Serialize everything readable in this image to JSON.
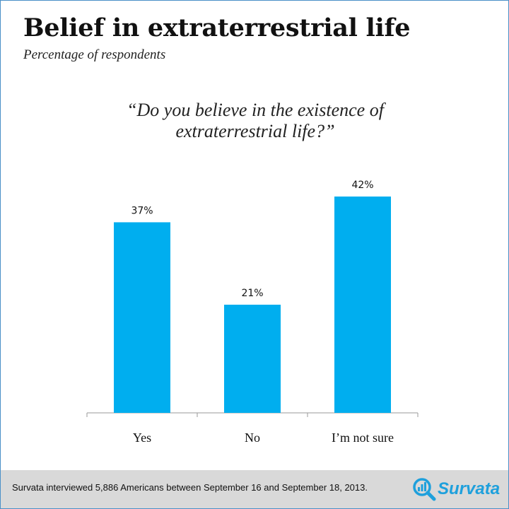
{
  "header": {
    "title": "Belief in extraterrestrial life",
    "subtitle": "Percentage of respondents"
  },
  "question": {
    "line1": "“Do you believe in the existence of",
    "line2": "extraterrestrial life?”"
  },
  "chart_data": {
    "type": "bar",
    "categories": [
      "Yes",
      "No",
      "I’m not sure"
    ],
    "values": [
      37,
      21,
      42
    ],
    "data_labels": [
      "37%",
      "21%",
      "42%"
    ],
    "title": "",
    "xlabel": "",
    "ylabel": "",
    "ylim": [
      0,
      50
    ],
    "grid": false,
    "legend": "none",
    "bar_color": "#00aeef"
  },
  "footer": {
    "note": "Survata interviewed 5,886 Americans between September 16 and September 18, 2013.",
    "logo_text": "Survata",
    "logo_icon": "magnifier-bar-chart-icon",
    "logo_color": "#1ea0dc"
  }
}
